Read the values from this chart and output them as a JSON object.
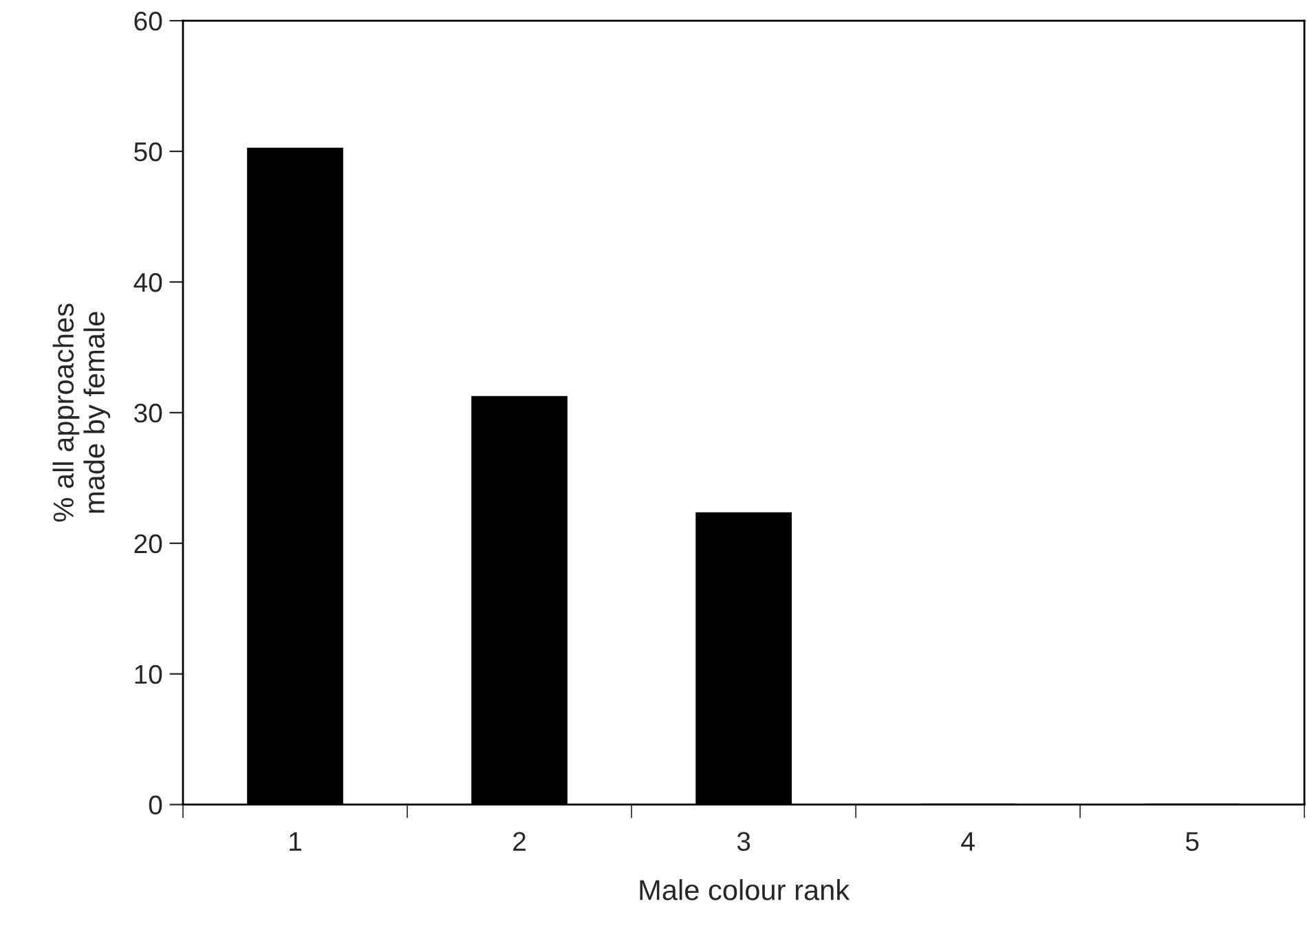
{
  "chart_data": {
    "type": "bar",
    "xlabel": "Male colour rank",
    "ylabel": "% all approaches\nmade by female",
    "categories": [
      "1",
      "2",
      "3",
      "4",
      "5"
    ],
    "values": [
      50.2,
      31.2,
      22.3,
      0,
      0
    ],
    "color": "#000000",
    "ylim": [
      0,
      60
    ],
    "yticks": [
      0,
      10,
      20,
      30,
      40,
      50,
      60
    ],
    "grid": false
  }
}
